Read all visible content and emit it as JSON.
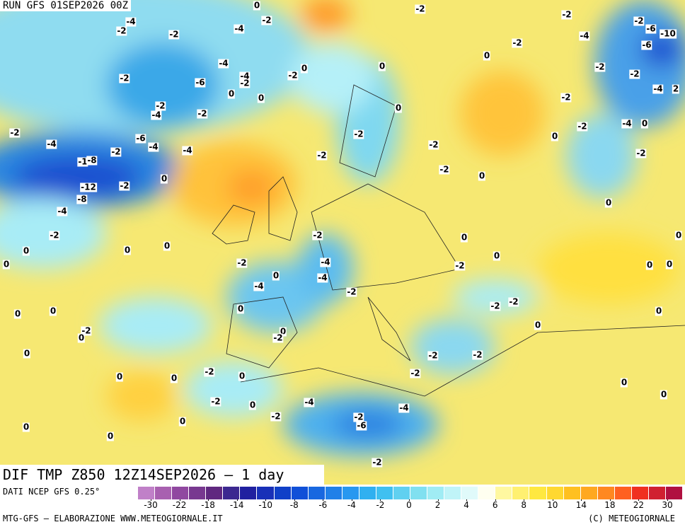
{
  "header": {
    "run": "RUN GFS 01SEP2026 00Z"
  },
  "footer": {
    "title": "DIF TMP Z850 12Z14SEP2026 – 1 day",
    "source": "DATI NCEP GFS 0.25°",
    "credit": "MTG-GFS – ELABORAZIONE WWW.METEOGIORNALE.IT",
    "copyright": "(C) METEOGIORNALE"
  },
  "legend": {
    "colors": [
      "#c080c8",
      "#a860b0",
      "#9048a0",
      "#783890",
      "#602880",
      "#3c2890",
      "#2020a0",
      "#1830b8",
      "#1040c8",
      "#1050d8",
      "#1868e0",
      "#2080e8",
      "#2898f0",
      "#30b0f0",
      "#40c0f0",
      "#60d0f0",
      "#80e0f0",
      "#a0ecf4",
      "#c0f4f8",
      "#e0fafa",
      "#fffff0",
      "#fff8a0",
      "#fff070",
      "#ffe840",
      "#ffd830",
      "#ffc020",
      "#ffa820",
      "#ff8820",
      "#ff6020",
      "#f03020",
      "#d02030",
      "#b01040"
    ],
    "ticks": [
      -30,
      -22,
      -18,
      -14,
      -10,
      -8,
      -6,
      -4,
      -2,
      0,
      2,
      4,
      6,
      8,
      10,
      14,
      18,
      22,
      30
    ]
  },
  "contour_labels": [
    "0",
    "-2",
    "-2",
    "-4",
    "-2",
    "-4",
    "-2",
    "-2",
    "-2",
    "-6",
    "-10",
    "-4",
    "-6",
    "-2",
    "0",
    "-4",
    "0",
    "0",
    "-2",
    "-4",
    "-2",
    "-2",
    "-2",
    "-6",
    "-2",
    "0",
    "0",
    "-4",
    "2",
    "-2",
    "-2",
    "0",
    "-2",
    "-4",
    "-2",
    "-4",
    "0",
    "-2",
    "-6",
    "-2",
    "0",
    "-4",
    "-4",
    "-4",
    "-2",
    "-2",
    "-2",
    "-2",
    "-1",
    "-8",
    "-2",
    "0",
    "0",
    "-12",
    "-2",
    "-8",
    "-4",
    "0",
    "-2",
    "-2",
    "0",
    "0",
    "0",
    "0",
    "0",
    "0",
    "0",
    "-2",
    "-4",
    "-2",
    "0",
    "0",
    "0",
    "-4",
    "-4",
    "-2",
    "0",
    "0",
    "0",
    "-2",
    "-2",
    "0",
    "-2",
    "0",
    "0",
    "-2",
    "0",
    "0",
    "-2",
    "-2",
    "-2",
    "-2",
    "0",
    "0",
    "0",
    "0",
    "0",
    "-2",
    "0",
    "-4",
    "-4",
    "-2",
    "-2",
    "-6",
    "0",
    "0",
    "0",
    "-2"
  ]
}
